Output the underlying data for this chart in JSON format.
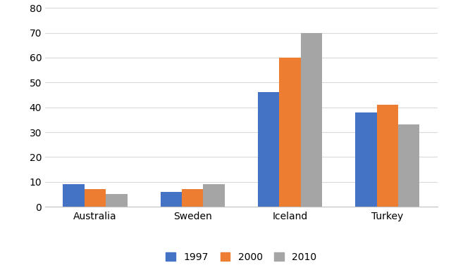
{
  "categories": [
    "Australia",
    "Sweden",
    "Iceland",
    "Turkey"
  ],
  "series": {
    "1997": [
      9,
      6,
      46,
      38
    ],
    "2000": [
      7,
      7,
      60,
      41
    ],
    "2010": [
      5,
      9,
      70,
      33
    ]
  },
  "colors": {
    "1997": "#4472C4",
    "2000": "#ED7D31",
    "2010": "#A5A5A5"
  },
  "legend_labels": [
    "1997",
    "2000",
    "2010"
  ],
  "ylim": [
    0,
    80
  ],
  "yticks": [
    0,
    10,
    20,
    30,
    40,
    50,
    60,
    70,
    80
  ],
  "background_color": "#ffffff",
  "grid_color": "#d9d9d9",
  "border_color": "#c0c0c0"
}
